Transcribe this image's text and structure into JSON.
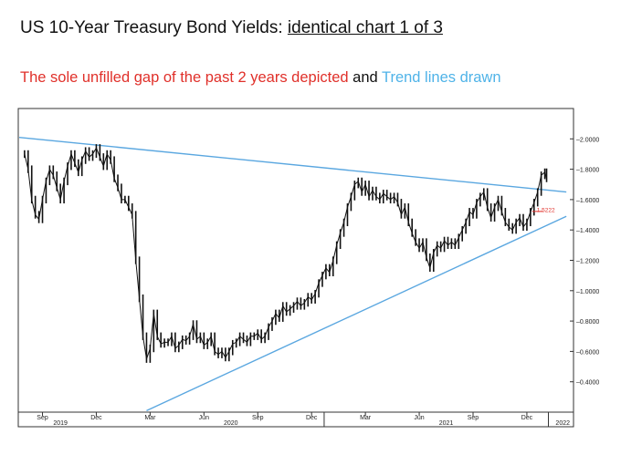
{
  "header": {
    "title_prefix": "US 10-Year Treasury Bond Yields: ",
    "title_underlined": "identical chart 1 of 3",
    "subtitle_red": "The sole unfilled gap of the past 2 years depicted",
    "subtitle_and": " and ",
    "subtitle_blue": "Trend lines drawn"
  },
  "colors": {
    "red_text": "#e0302a",
    "blue_text": "#4fb3e8",
    "trendline": "#5aa7e0",
    "candles": "#111111",
    "gap_marker": "#e0302a"
  },
  "chart_data": {
    "type": "line",
    "title": "",
    "xlabel": "",
    "ylabel": "",
    "ylim": [
      0.2,
      2.2
    ],
    "y_ticks": [
      "2.0000",
      "1.8000",
      "1.6000",
      "1.4000",
      "1.2000",
      "1.0000",
      "0.8000",
      "0.6000",
      "0.4000"
    ],
    "x_month_ticks": [
      {
        "label": "Sep",
        "t": 1.0
      },
      {
        "label": "Dec",
        "t": 4.0
      },
      {
        "label": "Mar",
        "t": 7.0
      },
      {
        "label": "Jun",
        "t": 10.0
      },
      {
        "label": "Sep",
        "t": 13.0
      },
      {
        "label": "Dec",
        "t": 16.0
      },
      {
        "label": "Mar",
        "t": 19.0
      },
      {
        "label": "Jun",
        "t": 22.0
      },
      {
        "label": "Sep",
        "t": 25.0
      },
      {
        "label": "Dec",
        "t": 28.0
      }
    ],
    "x_year_labels": [
      {
        "label": "2019",
        "t": 2.0
      },
      {
        "label": "2020",
        "t": 11.5
      },
      {
        "label": "2021",
        "t": 23.5
      },
      {
        "label": "2022",
        "t": 30.0
      }
    ],
    "series": [
      {
        "points": [
          [
            0.0,
            1.9
          ],
          [
            0.2,
            1.8
          ],
          [
            0.4,
            1.6
          ],
          [
            0.6,
            1.5
          ],
          [
            0.8,
            1.47
          ],
          [
            1.0,
            1.6
          ],
          [
            1.2,
            1.72
          ],
          [
            1.4,
            1.8
          ],
          [
            1.6,
            1.76
          ],
          [
            1.8,
            1.68
          ],
          [
            2.0,
            1.6
          ],
          [
            2.2,
            1.72
          ],
          [
            2.4,
            1.82
          ],
          [
            2.6,
            1.9
          ],
          [
            2.8,
            1.84
          ],
          [
            3.0,
            1.78
          ],
          [
            3.2,
            1.86
          ],
          [
            3.4,
            1.92
          ],
          [
            3.6,
            1.88
          ],
          [
            3.8,
            1.9
          ],
          [
            4.0,
            1.94
          ],
          [
            4.2,
            1.88
          ],
          [
            4.4,
            1.82
          ],
          [
            4.6,
            1.9
          ],
          [
            4.8,
            1.86
          ],
          [
            5.0,
            1.74
          ],
          [
            5.2,
            1.68
          ],
          [
            5.4,
            1.6
          ],
          [
            5.6,
            1.6
          ],
          [
            5.8,
            1.55
          ],
          [
            6.0,
            1.5
          ],
          [
            6.2,
            1.2
          ],
          [
            6.4,
            0.95
          ],
          [
            6.6,
            0.7
          ],
          [
            6.8,
            0.55
          ],
          [
            7.0,
            0.62
          ],
          [
            7.2,
            0.85
          ],
          [
            7.4,
            0.7
          ],
          [
            7.6,
            0.65
          ],
          [
            7.8,
            0.66
          ],
          [
            8.0,
            0.66
          ],
          [
            8.2,
            0.7
          ],
          [
            8.4,
            0.62
          ],
          [
            8.6,
            0.64
          ],
          [
            8.8,
            0.68
          ],
          [
            9.0,
            0.67
          ],
          [
            9.2,
            0.7
          ],
          [
            9.4,
            0.78
          ],
          [
            9.6,
            0.68
          ],
          [
            9.8,
            0.7
          ],
          [
            10.0,
            0.64
          ],
          [
            10.2,
            0.66
          ],
          [
            10.4,
            0.7
          ],
          [
            10.6,
            0.6
          ],
          [
            10.8,
            0.58
          ],
          [
            11.0,
            0.6
          ],
          [
            11.2,
            0.56
          ],
          [
            11.4,
            0.6
          ],
          [
            11.6,
            0.65
          ],
          [
            11.8,
            0.66
          ],
          [
            12.0,
            0.7
          ],
          [
            12.2,
            0.68
          ],
          [
            12.4,
            0.66
          ],
          [
            12.6,
            0.7
          ],
          [
            12.8,
            0.7
          ],
          [
            13.0,
            0.72
          ],
          [
            13.2,
            0.68
          ],
          [
            13.4,
            0.7
          ],
          [
            13.6,
            0.76
          ],
          [
            13.8,
            0.8
          ],
          [
            14.0,
            0.85
          ],
          [
            14.2,
            0.82
          ],
          [
            14.4,
            0.9
          ],
          [
            14.6,
            0.86
          ],
          [
            14.8,
            0.88
          ],
          [
            15.0,
            0.9
          ],
          [
            15.2,
            0.93
          ],
          [
            15.4,
            0.9
          ],
          [
            15.6,
            0.92
          ],
          [
            15.8,
            0.96
          ],
          [
            16.0,
            0.94
          ],
          [
            16.2,
            0.98
          ],
          [
            16.4,
            1.05
          ],
          [
            16.6,
            1.1
          ],
          [
            16.8,
            1.15
          ],
          [
            17.0,
            1.12
          ],
          [
            17.2,
            1.2
          ],
          [
            17.4,
            1.3
          ],
          [
            17.6,
            1.38
          ],
          [
            17.8,
            1.45
          ],
          [
            18.0,
            1.55
          ],
          [
            18.2,
            1.62
          ],
          [
            18.4,
            1.7
          ],
          [
            18.6,
            1.72
          ],
          [
            18.8,
            1.65
          ],
          [
            19.0,
            1.7
          ],
          [
            19.2,
            1.62
          ],
          [
            19.4,
            1.66
          ],
          [
            19.6,
            1.62
          ],
          [
            19.8,
            1.6
          ],
          [
            20.0,
            1.64
          ],
          [
            20.2,
            1.62
          ],
          [
            20.4,
            1.6
          ],
          [
            20.6,
            1.62
          ],
          [
            20.8,
            1.58
          ],
          [
            21.0,
            1.5
          ],
          [
            21.2,
            1.55
          ],
          [
            21.4,
            1.45
          ],
          [
            21.6,
            1.38
          ],
          [
            21.8,
            1.32
          ],
          [
            22.0,
            1.28
          ],
          [
            22.2,
            1.32
          ],
          [
            22.4,
            1.22
          ],
          [
            22.6,
            1.15
          ],
          [
            22.8,
            1.25
          ],
          [
            23.0,
            1.3
          ],
          [
            23.2,
            1.28
          ],
          [
            23.4,
            1.33
          ],
          [
            23.6,
            1.3
          ],
          [
            23.8,
            1.32
          ],
          [
            24.0,
            1.3
          ],
          [
            24.2,
            1.35
          ],
          [
            24.4,
            1.4
          ],
          [
            24.6,
            1.45
          ],
          [
            24.8,
            1.52
          ],
          [
            25.0,
            1.5
          ],
          [
            25.2,
            1.58
          ],
          [
            25.4,
            1.62
          ],
          [
            25.6,
            1.65
          ],
          [
            25.8,
            1.55
          ],
          [
            26.0,
            1.48
          ],
          [
            26.2,
            1.55
          ],
          [
            26.4,
            1.6
          ],
          [
            26.6,
            1.52
          ],
          [
            26.8,
            1.45
          ],
          [
            27.0,
            1.42
          ],
          [
            27.2,
            1.4
          ],
          [
            27.4,
            1.45
          ],
          [
            27.6,
            1.48
          ],
          [
            27.8,
            1.42
          ],
          [
            28.0,
            1.45
          ],
          [
            28.2,
            1.52
          ],
          [
            28.4,
            1.58
          ],
          [
            28.6,
            1.65
          ],
          [
            28.8,
            1.76
          ],
          [
            29.0,
            1.78
          ],
          [
            29.1,
            1.74
          ]
        ]
      }
    ],
    "trendlines": [
      {
        "from": [
          -0.3,
          2.01
        ],
        "to": [
          30.2,
          1.65
        ]
      },
      {
        "from": [
          6.8,
          0.21
        ],
        "to": [
          30.2,
          1.49
        ]
      }
    ],
    "annotation": {
      "text": "1.5222",
      "t": 28.5,
      "y": 1.5222
    }
  }
}
